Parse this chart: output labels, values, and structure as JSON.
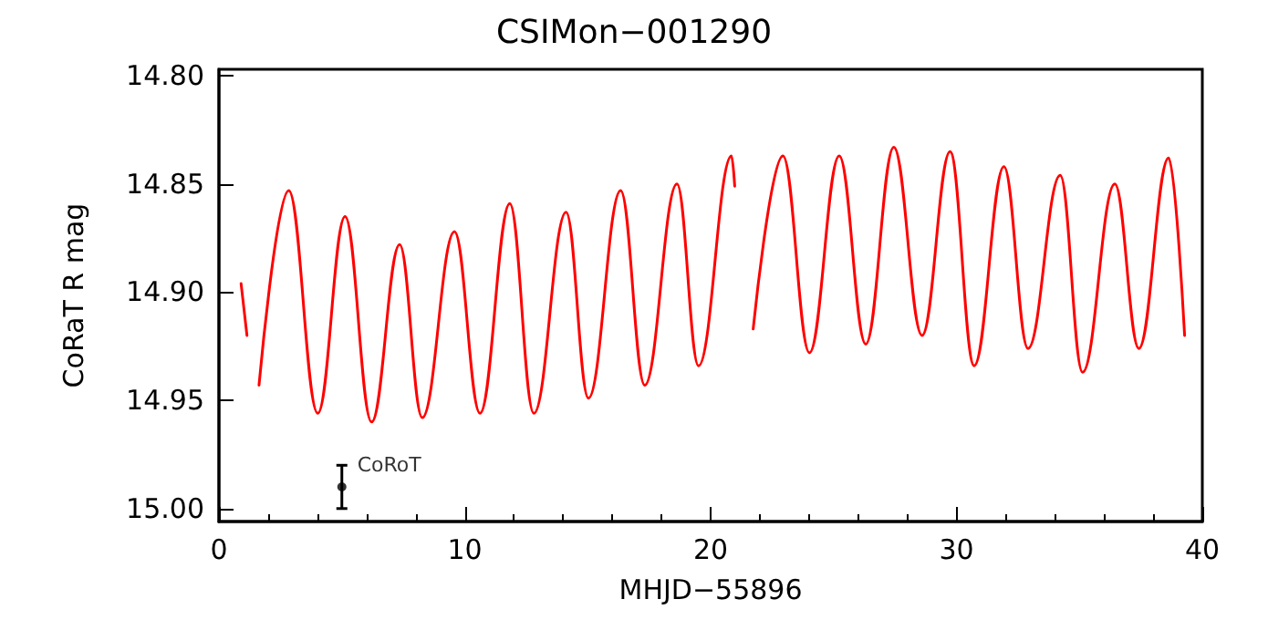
{
  "chart_data": {
    "type": "line",
    "title": "CSIMon−001290",
    "xlabel": "MHJD−55896",
    "ylabel": "CoRaT R mag",
    "xlim": [
      0,
      40
    ],
    "xticks": [
      0,
      10,
      20,
      30,
      40
    ],
    "ylim": [
      15.006,
      14.797
    ],
    "yticks": [
      {
        "value": 14.8,
        "label": "14.80"
      },
      {
        "value": 14.85,
        "label": "14.85"
      },
      {
        "value": 14.9,
        "label": "14.90"
      },
      {
        "value": 14.95,
        "label": "14.95"
      },
      {
        "value": 15.0,
        "label": "15.00"
      }
    ],
    "grid": false,
    "legend": false,
    "marker": "none",
    "line_style": "solid",
    "series": [
      {
        "color": "#ff0000",
        "x": [
          0.9,
          1.14,
          1.4,
          1.63,
          2.84,
          4.02,
          5.13,
          6.21,
          7.35,
          8.27,
          9.58,
          10.62,
          11.83,
          12.81,
          14.12,
          15.03,
          16.34,
          17.32,
          18.63,
          19.51,
          20.85,
          20.98,
          21.4,
          21.73,
          22.94,
          24.02,
          25.23,
          26.31,
          27.45,
          28.6,
          29.74,
          30.72,
          31.93,
          32.91,
          34.22,
          35.13,
          36.44,
          37.42,
          38.63,
          39.28
        ],
        "values": [
          14.896,
          14.92,
          null,
          14.943,
          14.853,
          14.956,
          14.865,
          14.96,
          14.878,
          14.958,
          14.872,
          14.956,
          14.859,
          14.956,
          14.863,
          14.949,
          14.853,
          14.943,
          14.85,
          14.934,
          14.837,
          14.851,
          null,
          14.917,
          14.837,
          14.928,
          14.837,
          14.924,
          14.833,
          14.92,
          14.835,
          14.934,
          14.842,
          14.926,
          14.846,
          14.937,
          14.85,
          14.926,
          14.838,
          14.92
        ]
      },
      {
        "type": "scatter",
        "name": "CoRoT",
        "color": "#000000",
        "marker": "circle",
        "x": [
          5
        ],
        "values": [
          14.99
        ],
        "errors": [
          0.01
        ]
      }
    ]
  }
}
